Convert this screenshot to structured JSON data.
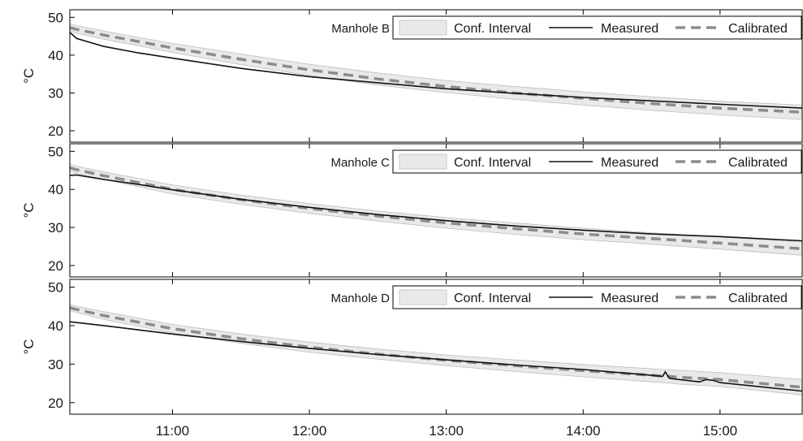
{
  "chart_data": {
    "type": "line",
    "x_tick_labels": [
      "11:00",
      "12:00",
      "13:00",
      "14:00",
      "15:00"
    ],
    "x_ticks_hours": [
      11,
      12,
      13,
      14,
      15
    ],
    "x_range_hours": [
      10.25,
      15.6
    ],
    "ylabel": "°C",
    "ylim": [
      17,
      52
    ],
    "y_ticks": [
      20,
      30,
      40,
      50
    ],
    "legend": {
      "ci_label": "Conf. Interval",
      "measured_label": "Measured",
      "calibrated_label": "Calibrated",
      "placement": "top-right"
    },
    "colors": {
      "ci_fill": "#e9e9e9",
      "ci_edge": "#bdbdbd",
      "measured": "#111111",
      "calibrated": "#8c8c8c"
    },
    "panels": [
      {
        "label": "Manhole B",
        "x": [
          10.25,
          10.3,
          10.5,
          10.75,
          11,
          11.5,
          12,
          12.5,
          13,
          13.5,
          14,
          14.5,
          15,
          15.6
        ],
        "measured": [
          46,
          44.4,
          42.3,
          40.6,
          39.2,
          36.5,
          34.3,
          32.7,
          31.1,
          29.9,
          28.8,
          27.9,
          27.0,
          26.0
        ],
        "calibrated": [
          47.3,
          46.8,
          45.3,
          43.6,
          41.9,
          38.9,
          36.1,
          33.7,
          31.7,
          30.0,
          28.6,
          27.2,
          26.0,
          24.9
        ],
        "ci_upper": [
          48.3,
          47.8,
          46.4,
          44.7,
          43.1,
          40.3,
          37.6,
          35.3,
          33.3,
          31.7,
          30.3,
          29.0,
          27.8,
          26.8
        ],
        "ci_lower": [
          46.4,
          45.8,
          44.2,
          42.5,
          40.7,
          37.5,
          34.6,
          32.1,
          30.1,
          28.3,
          26.8,
          25.4,
          24.2,
          23.0
        ]
      },
      {
        "label": "Manhole C",
        "x": [
          10.25,
          10.3,
          10.5,
          10.75,
          11,
          11.5,
          12,
          12.5,
          13,
          13.5,
          14,
          14.5,
          15,
          15.6
        ],
        "measured": [
          43.7,
          43.8,
          42.6,
          41.3,
          39.9,
          37.4,
          35.3,
          33.4,
          31.8,
          30.4,
          29.3,
          28.3,
          27.6,
          26.5
        ],
        "calibrated": [
          45.7,
          45.2,
          43.6,
          41.8,
          40.0,
          37.3,
          35.0,
          33.0,
          31.2,
          29.7,
          28.3,
          27.1,
          25.9,
          24.4
        ],
        "ci_upper": [
          46.6,
          46.1,
          44.6,
          42.9,
          41.2,
          38.5,
          36.3,
          34.3,
          32.6,
          31.2,
          29.8,
          28.6,
          27.5,
          26.2
        ],
        "ci_lower": [
          44.8,
          44.2,
          42.6,
          40.7,
          38.8,
          36.1,
          33.7,
          31.7,
          29.8,
          28.2,
          26.8,
          25.6,
          24.3,
          22.7
        ]
      },
      {
        "label": "Manhole D",
        "x": [
          10.25,
          10.5,
          11,
          11.5,
          12,
          12.5,
          13,
          13.5,
          14,
          14.5,
          14.58,
          14.6,
          14.63,
          14.7,
          14.85,
          14.9,
          14.95,
          15,
          15.3,
          15.6
        ],
        "measured": [
          41.0,
          40.0,
          37.8,
          35.9,
          34.1,
          32.5,
          31.1,
          29.8,
          28.6,
          27.1,
          26.8,
          28.0,
          26.3,
          26.0,
          25.4,
          26.0,
          25.8,
          25.2,
          24.1,
          23.0
        ],
        "calibrated": [
          44.6,
          42.6,
          39.2,
          36.6,
          34.4,
          32.6,
          31.0,
          29.6,
          28.3,
          27.1,
          26.9,
          26.9,
          26.8,
          26.6,
          26.3,
          26.2,
          26.1,
          26.0,
          25.0,
          24.0
        ],
        "ci_upper": [
          45.4,
          43.6,
          40.3,
          37.8,
          35.7,
          33.9,
          32.4,
          31.1,
          29.9,
          28.8,
          28.6,
          28.6,
          28.5,
          28.4,
          28.1,
          28.0,
          27.9,
          27.8,
          26.9,
          26.0
        ],
        "ci_lower": [
          43.8,
          41.6,
          38.1,
          35.4,
          33.1,
          31.3,
          29.6,
          28.1,
          26.7,
          25.4,
          25.2,
          25.2,
          25.1,
          24.8,
          24.5,
          24.4,
          24.3,
          24.2,
          23.1,
          22.0
        ]
      }
    ]
  }
}
